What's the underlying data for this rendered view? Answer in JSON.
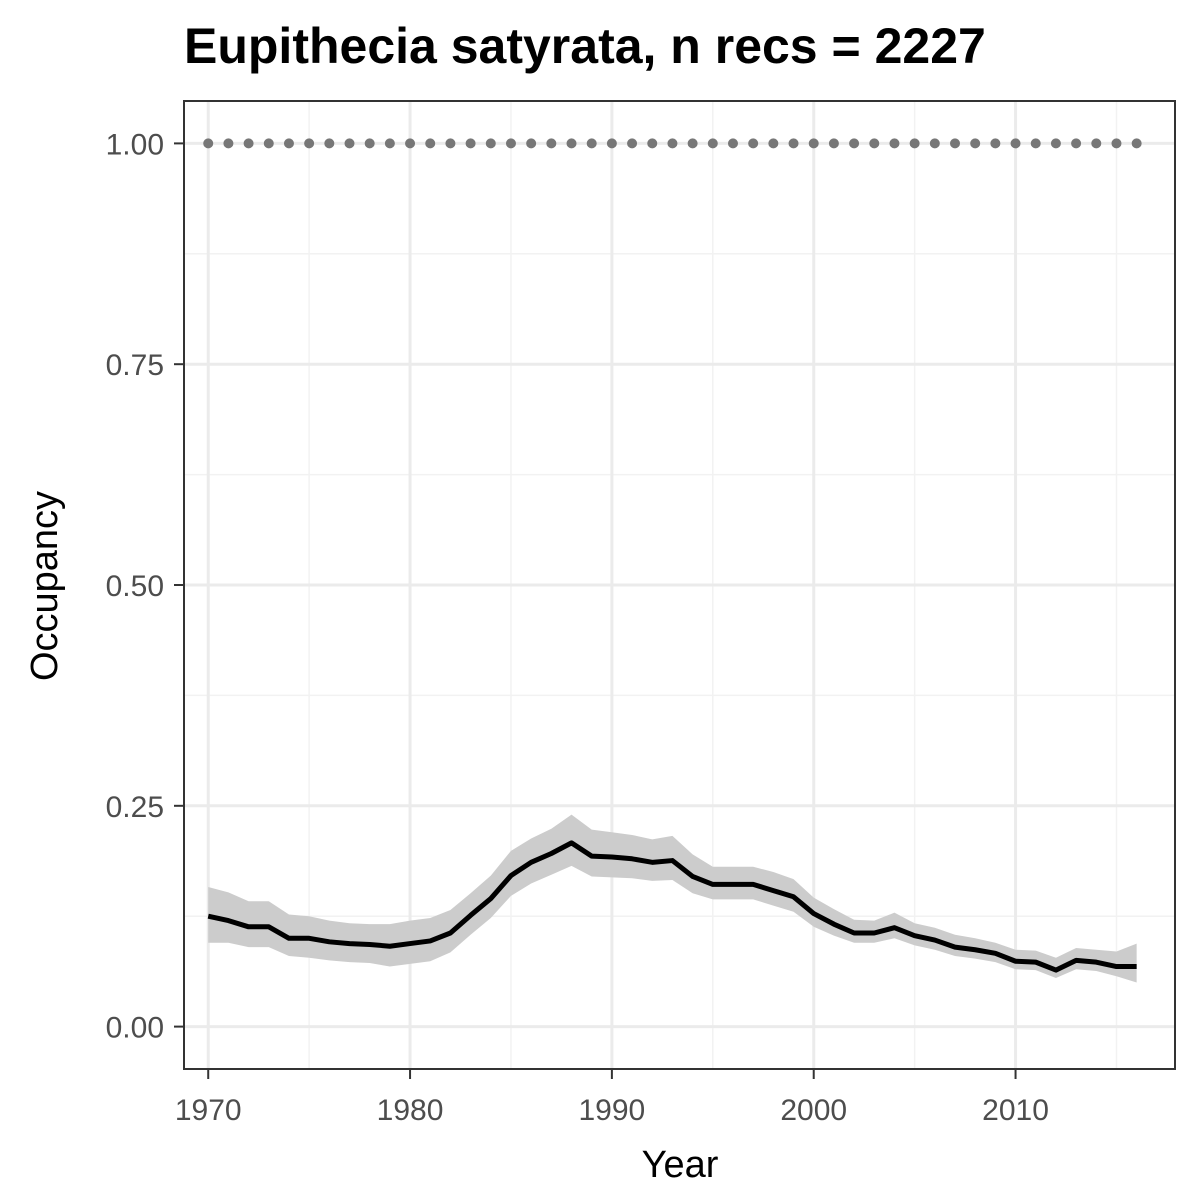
{
  "chart_data": {
    "type": "line",
    "title": "Eupithecia satyrata, n recs = 2227",
    "xlabel": "Year",
    "ylabel": "Occupancy",
    "xlim": [
      1968.8,
      2017.9
    ],
    "ylim": [
      -0.048,
      1.048
    ],
    "x_ticks": [
      1970,
      1980,
      1990,
      2000,
      2010
    ],
    "x_tick_labels": [
      "1970",
      "1980",
      "1990",
      "2000",
      "2010"
    ],
    "y_ticks": [
      0,
      0.25,
      0.5,
      0.75,
      1.0
    ],
    "y_tick_labels": [
      "0.00",
      "0.25",
      "0.50",
      "0.75",
      "1.00"
    ],
    "grid": true,
    "legend": "none",
    "x": [
      1970,
      1971,
      1972,
      1973,
      1974,
      1975,
      1976,
      1977,
      1978,
      1979,
      1980,
      1981,
      1982,
      1983,
      1984,
      1985,
      1986,
      1987,
      1988,
      1989,
      1990,
      1991,
      1992,
      1993,
      1994,
      1995,
      1996,
      1997,
      1998,
      1999,
      2000,
      2001,
      2002,
      2003,
      2004,
      2005,
      2006,
      2007,
      2008,
      2009,
      2010,
      2011,
      2012,
      2013,
      2014,
      2015,
      2016
    ],
    "series": [
      {
        "values": [
          0.125,
          0.12,
          0.113,
          0.113,
          0.1,
          0.1,
          0.096,
          0.094,
          0.093,
          0.091,
          0.094,
          0.097,
          0.106,
          0.126,
          0.145,
          0.171,
          0.186,
          0.196,
          0.208,
          0.193,
          0.192,
          0.19,
          0.186,
          0.188,
          0.17,
          0.161,
          0.161,
          0.161,
          0.154,
          0.147,
          0.128,
          0.116,
          0.106,
          0.106,
          0.112,
          0.103,
          0.098,
          0.09,
          0.087,
          0.083,
          0.074,
          0.073,
          0.064,
          0.075,
          0.073,
          0.068,
          0.068
        ],
        "lower": [
          0.095,
          0.095,
          0.09,
          0.09,
          0.08,
          0.078,
          0.075,
          0.073,
          0.072,
          0.068,
          0.071,
          0.074,
          0.084,
          0.104,
          0.123,
          0.148,
          0.162,
          0.172,
          0.182,
          0.17,
          0.169,
          0.168,
          0.165,
          0.166,
          0.151,
          0.144,
          0.144,
          0.144,
          0.137,
          0.13,
          0.113,
          0.103,
          0.095,
          0.095,
          0.1,
          0.092,
          0.087,
          0.08,
          0.077,
          0.073,
          0.065,
          0.064,
          0.055,
          0.065,
          0.063,
          0.057,
          0.05
        ],
        "upper": [
          0.158,
          0.152,
          0.142,
          0.142,
          0.127,
          0.125,
          0.12,
          0.117,
          0.116,
          0.116,
          0.12,
          0.123,
          0.132,
          0.151,
          0.171,
          0.199,
          0.213,
          0.224,
          0.24,
          0.223,
          0.22,
          0.217,
          0.212,
          0.216,
          0.195,
          0.181,
          0.181,
          0.181,
          0.175,
          0.167,
          0.146,
          0.133,
          0.121,
          0.12,
          0.129,
          0.117,
          0.112,
          0.104,
          0.1,
          0.095,
          0.087,
          0.086,
          0.078,
          0.089,
          0.087,
          0.085,
          0.094
        ],
        "color": "#000000",
        "ribbon_color": "#cccccc"
      },
      {
        "values": [
          1,
          1,
          1,
          1,
          1,
          1,
          1,
          1,
          1,
          1,
          1,
          1,
          1,
          1,
          1,
          1,
          1,
          1,
          1,
          1,
          1,
          1,
          1,
          1,
          1,
          1,
          1,
          1,
          1,
          1,
          1,
          1,
          1,
          1,
          1,
          1,
          1,
          1,
          1,
          1,
          1,
          1,
          1,
          1,
          1,
          1,
          1
        ],
        "style": "dotted",
        "color": "#777777"
      }
    ]
  }
}
